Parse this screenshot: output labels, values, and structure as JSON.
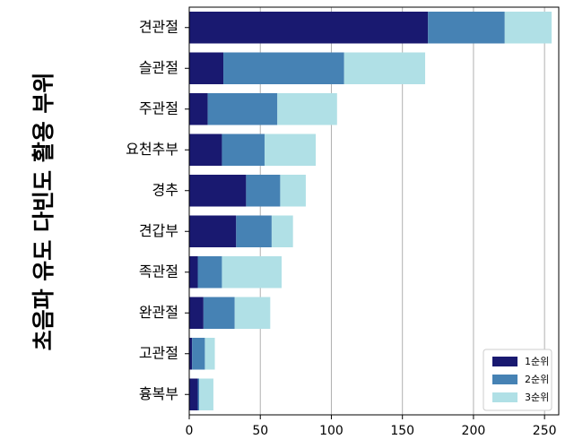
{
  "chart_data": {
    "type": "bar",
    "orientation": "horizontal",
    "stacked": true,
    "title": "",
    "xlabel": "",
    "ylabel": "초음파 유도 다빈도 활용 부위",
    "categories": [
      "견관절",
      "슬관절",
      "주관절",
      "요천추부",
      "경추",
      "견갑부",
      "족관절",
      "완관절",
      "고관절",
      "흉복부"
    ],
    "series": [
      {
        "name": "1순위",
        "color": "#191970",
        "values": [
          168,
          24,
          13,
          23,
          40,
          33,
          6,
          10,
          2,
          6
        ]
      },
      {
        "name": "2순위",
        "color": "#4682b4",
        "values": [
          54,
          85,
          49,
          30,
          24,
          25,
          17,
          22,
          9,
          1
        ]
      },
      {
        "name": "3순위",
        "color": "#b0e0e6",
        "values": [
          33,
          57,
          42,
          36,
          18,
          15,
          42,
          25,
          7,
          10
        ]
      }
    ],
    "xlim": [
      0,
      260
    ],
    "xticks": [
      0,
      50,
      100,
      150,
      200,
      250
    ],
    "grid": "vertical",
    "legend_position": "lower-right"
  }
}
